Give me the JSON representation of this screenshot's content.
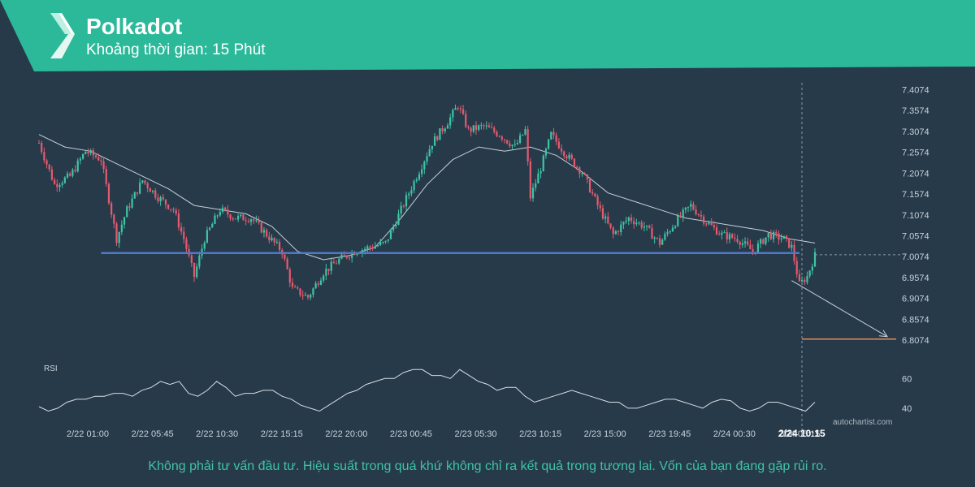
{
  "header": {
    "title": "Polkadot",
    "subtitle": "Khoảng thời gian: 15 Phút"
  },
  "footer": {
    "disclaimer": "Không phải tư vấn đầu tư. Hiệu suất trong quá khứ không chỉ ra kết quả trong tương lai. Vốn của bạn đang gặp rủi ro.",
    "watermark": "autochartist.com"
  },
  "colors": {
    "background": "#263a4a",
    "banner": "#2bb99a",
    "up_candle": "#3fc3a5",
    "down_candle": "#e55a6e",
    "support_line": "#4f79c9",
    "target_line": "#e58a5a",
    "moving_average": "#c8d0d6",
    "rsi_line": "#d8dde2"
  },
  "chart_data": [
    {
      "type": "candlestick",
      "title": "Polkadot",
      "y_ticks": [
        "7.4074",
        "7.3574",
        "7.3074",
        "7.2574",
        "7.2074",
        "7.1574",
        "7.1074",
        "7.0574",
        "7.0074",
        "6.9574",
        "6.9074",
        "6.8574",
        "6.8074"
      ],
      "ylim": [
        6.79,
        7.42
      ],
      "x_ticks": [
        "2/22 01:00",
        "2/22 05:45",
        "2/22 10:30",
        "2/22 15:15",
        "2/22 20:00",
        "2/23 00:45",
        "2/23 05:30",
        "2/23 10:15",
        "2/23 15:00",
        "2/23 19:45",
        "2/24 00:30",
        "2/24 05:15"
      ],
      "current_time_label": "2/24 10:15",
      "close_path": [
        [
          0,
          7.28
        ],
        [
          6,
          7.18
        ],
        [
          12,
          7.2
        ],
        [
          18,
          7.26
        ],
        [
          24,
          7.24
        ],
        [
          30,
          7.05
        ],
        [
          34,
          7.12
        ],
        [
          40,
          7.19
        ],
        [
          46,
          7.15
        ],
        [
          52,
          7.12
        ],
        [
          56,
          7.05
        ],
        [
          60,
          6.96
        ],
        [
          64,
          7.05
        ],
        [
          70,
          7.12
        ],
        [
          76,
          7.1
        ],
        [
          82,
          7.1
        ],
        [
          88,
          7.06
        ],
        [
          94,
          7.02
        ],
        [
          98,
          6.93
        ],
        [
          104,
          6.91
        ],
        [
          110,
          6.97
        ],
        [
          116,
          7.0
        ],
        [
          122,
          7.02
        ],
        [
          128,
          7.03
        ],
        [
          134,
          7.04
        ],
        [
          140,
          7.12
        ],
        [
          146,
          7.2
        ],
        [
          152,
          7.28
        ],
        [
          158,
          7.33
        ],
        [
          162,
          7.37
        ],
        [
          166,
          7.31
        ],
        [
          172,
          7.32
        ],
        [
          178,
          7.3
        ],
        [
          184,
          7.27
        ],
        [
          188,
          7.31
        ],
        [
          190,
          7.15
        ],
        [
          194,
          7.22
        ],
        [
          198,
          7.3
        ],
        [
          204,
          7.25
        ],
        [
          210,
          7.21
        ],
        [
          216,
          7.13
        ],
        [
          222,
          7.06
        ],
        [
          228,
          7.1
        ],
        [
          234,
          7.08
        ],
        [
          240,
          7.04
        ],
        [
          246,
          7.09
        ],
        [
          252,
          7.13
        ],
        [
          258,
          7.09
        ],
        [
          264,
          7.06
        ],
        [
          270,
          7.05
        ],
        [
          276,
          7.02
        ],
        [
          282,
          7.06
        ],
        [
          288,
          7.05
        ],
        [
          291,
          7.03
        ],
        [
          294,
          6.94
        ],
        [
          297,
          6.96
        ],
        [
          300,
          7.01
        ]
      ],
      "n_candles": 301,
      "moving_average_path": [
        [
          0,
          7.3
        ],
        [
          10,
          7.27
        ],
        [
          20,
          7.26
        ],
        [
          30,
          7.23
        ],
        [
          40,
          7.2
        ],
        [
          50,
          7.17
        ],
        [
          60,
          7.13
        ],
        [
          70,
          7.12
        ],
        [
          80,
          7.11
        ],
        [
          90,
          7.08
        ],
        [
          100,
          7.02
        ],
        [
          110,
          7.0
        ],
        [
          120,
          7.01
        ],
        [
          130,
          7.03
        ],
        [
          140,
          7.1
        ],
        [
          150,
          7.18
        ],
        [
          160,
          7.24
        ],
        [
          170,
          7.27
        ],
        [
          180,
          7.26
        ],
        [
          190,
          7.27
        ],
        [
          200,
          7.25
        ],
        [
          210,
          7.21
        ],
        [
          220,
          7.16
        ],
        [
          230,
          7.14
        ],
        [
          240,
          7.12
        ],
        [
          250,
          7.1
        ],
        [
          260,
          7.09
        ],
        [
          270,
          7.08
        ],
        [
          280,
          7.07
        ],
        [
          290,
          7.05
        ],
        [
          300,
          7.04
        ]
      ],
      "support_level": 7.016,
      "support_start_index": 24,
      "projection": {
        "from_index": 291,
        "from_value": 6.95,
        "to_index": 319,
        "to_value": 6.81
      },
      "target_level": 6.81
    },
    {
      "type": "line",
      "title": "RSI",
      "y_ticks": [
        "60",
        "40"
      ],
      "ylim": [
        35,
        70
      ],
      "values": [
        41,
        38,
        40,
        44,
        46,
        46,
        48,
        48,
        50,
        50,
        48,
        52,
        54,
        58,
        56,
        58,
        50,
        48,
        52,
        58,
        54,
        48,
        50,
        50,
        52,
        52,
        48,
        46,
        42,
        40,
        38,
        42,
        46,
        50,
        52,
        56,
        58,
        60,
        60,
        64,
        66,
        66,
        62,
        62,
        60,
        66,
        62,
        58,
        56,
        52,
        54,
        54,
        48,
        44,
        46,
        48,
        50,
        52,
        50,
        48,
        46,
        44,
        44,
        40,
        40,
        42,
        44,
        46,
        46,
        44,
        42,
        40,
        44,
        46,
        45,
        40,
        38,
        40,
        44,
        44,
        42,
        40,
        38,
        44
      ]
    }
  ]
}
